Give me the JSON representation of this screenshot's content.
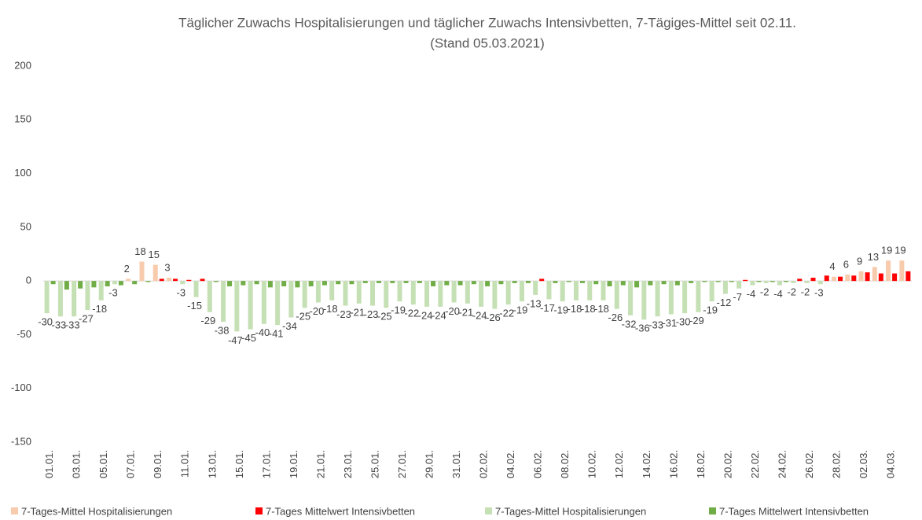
{
  "chart_data": {
    "type": "bar",
    "title": "Täglicher Zuwachs Hospitalisierungen und täglicher Zuwachs Intensivbetten, 7-Tägiges-Mittel seit 02.11.",
    "subtitle": "(Stand 05.03.2021)",
    "categories": [
      "01.01.",
      null,
      "03.01.",
      null,
      "05.01.",
      null,
      "07.01.",
      null,
      "09.01.",
      null,
      "11.01.",
      null,
      "13.01.",
      null,
      "15.01.",
      null,
      "17.01.",
      null,
      "19.01.",
      null,
      "21.01.",
      null,
      "23.01.",
      null,
      "25.01.",
      null,
      "27.01.",
      null,
      "29.01.",
      null,
      "31.01.",
      null,
      "02.02.",
      null,
      "04.02.",
      null,
      "06.02.",
      null,
      "08.02.",
      null,
      "10.02.",
      null,
      "12.02.",
      null,
      "14.02.",
      null,
      "16.02.",
      null,
      "18.02.",
      null,
      "20.02.",
      null,
      "22.02.",
      null,
      "24.02.",
      null,
      "26.02.",
      null,
      "28.02.",
      null,
      "02.03.",
      null,
      "04.03.",
      null
    ],
    "series": [
      {
        "name": "7-Tages-Mittel Hospitalisierungen",
        "color": "#f8cbad",
        "group": 0,
        "labels": true,
        "values": [
          null,
          null,
          null,
          null,
          null,
          null,
          2,
          18,
          15,
          3,
          null,
          null,
          null,
          null,
          null,
          null,
          null,
          null,
          null,
          null,
          null,
          null,
          null,
          null,
          null,
          null,
          null,
          null,
          null,
          null,
          null,
          null,
          null,
          null,
          null,
          null,
          null,
          null,
          null,
          null,
          null,
          null,
          null,
          null,
          null,
          null,
          null,
          null,
          null,
          null,
          null,
          null,
          null,
          null,
          null,
          null,
          null,
          null,
          4,
          6,
          9,
          13,
          19,
          19
        ]
      },
      {
        "name": "7-Tages Mittelwert Intensivbetten",
        "color": "#ff0000",
        "group": 1,
        "labels": false,
        "values": [
          null,
          null,
          null,
          null,
          null,
          null,
          null,
          null,
          2,
          2,
          1,
          2,
          null,
          null,
          null,
          null,
          null,
          null,
          null,
          null,
          null,
          null,
          null,
          null,
          null,
          null,
          null,
          null,
          null,
          null,
          null,
          null,
          null,
          null,
          null,
          null,
          2,
          null,
          null,
          null,
          null,
          null,
          null,
          null,
          null,
          null,
          null,
          null,
          null,
          null,
          null,
          1,
          null,
          null,
          null,
          2,
          3,
          5,
          4,
          5,
          8,
          7,
          7,
          9
        ]
      },
      {
        "name": "7-Tages-Mittel Hospitalisierungen",
        "color": "#c5e0b4",
        "group": 0,
        "labels": true,
        "values": [
          -30,
          -33,
          -33,
          -27,
          -18,
          -3,
          null,
          null,
          null,
          null,
          -3,
          -15,
          -29,
          -38,
          -47,
          -45,
          -40,
          -41,
          -34,
          -25,
          -20,
          -18,
          -23,
          -21,
          -23,
          -25,
          -19,
          -22,
          -24,
          -24,
          -20,
          -21,
          -24,
          -26,
          -22,
          -19,
          -13,
          -17,
          -19,
          -18,
          -18,
          -18,
          -26,
          -32,
          -36,
          -33,
          -31,
          -30,
          -29,
          -19,
          -12,
          -7,
          -4,
          -2,
          -4,
          -2,
          -2,
          -3,
          null,
          null,
          null,
          null,
          null,
          null
        ]
      },
      {
        "name": "7-Tages Mittelwert Intensivbetten",
        "color": "#70ad47",
        "group": 1,
        "labels": false,
        "values": [
          -3,
          -8,
          -7,
          -6,
          -5,
          -4,
          -3,
          -1,
          null,
          null,
          null,
          null,
          -1,
          -5,
          -4,
          -3,
          -6,
          -5,
          -6,
          -5,
          -4,
          -3,
          -3,
          -2,
          -2,
          -2,
          -2,
          -2,
          -5,
          -4,
          -4,
          -3,
          -5,
          -3,
          -2,
          -2,
          null,
          -2,
          -1,
          -2,
          -3,
          -5,
          -4,
          -6,
          -4,
          -3,
          -4,
          -2,
          -1,
          -1,
          -1,
          null,
          -1,
          -1,
          -1,
          null,
          null,
          null,
          null,
          null,
          null,
          null,
          null,
          null
        ]
      }
    ],
    "ylim": [
      -150,
      200
    ],
    "yticks": [
      -150,
      -100,
      -50,
      0,
      50,
      100,
      150,
      200
    ],
    "grid": false,
    "legend": "bottom"
  }
}
